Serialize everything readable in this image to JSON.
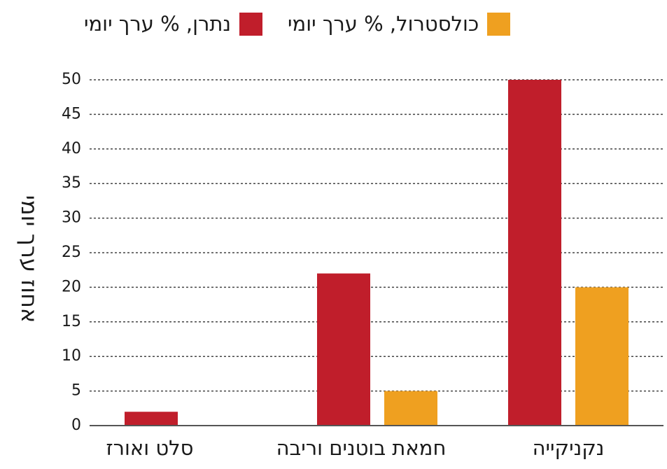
{
  "chart_data": {
    "type": "bar",
    "categories": [
      "נקניקייה",
      "חמאת בוטנים וריבה",
      "סלט ואורז"
    ],
    "series": [
      {
        "name": "נתרן, % ערך יומי",
        "values": [
          50,
          22,
          2
        ],
        "color": "#c01e2b"
      },
      {
        "name": "כולסטרול, % ערך יומי",
        "values": [
          20,
          5,
          0
        ],
        "color": "#efa020"
      }
    ],
    "yticks": [
      "0",
      "5",
      "10",
      "15",
      "20",
      "25",
      "30",
      "35",
      "40",
      "45",
      "50"
    ],
    "ylabel": "אחוז ערך יומי",
    "xlabel": "",
    "ylim": [
      0,
      50
    ],
    "grid": true,
    "legend_position": "top"
  }
}
